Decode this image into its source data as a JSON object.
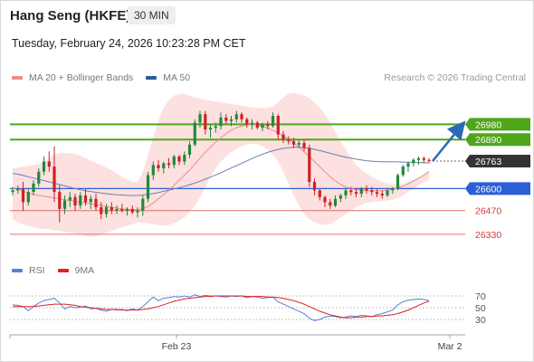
{
  "header": {
    "instrument": "Hang Seng (HKFE)",
    "timeframe": "30 MIN",
    "datetime": "Tuesday, February 24, 2026 10:23:28 PM CET",
    "credit": "Research © 2026 Trading Central"
  },
  "legend_main": [
    {
      "label": "MA 20 + Bollinger Bands",
      "color": "#f08c8c"
    },
    {
      "label": "MA 50",
      "color": "#2a5b9c"
    }
  ],
  "legend_rsi": [
    {
      "label": "RSI",
      "color": "#5b7fd6"
    },
    {
      "label": "9MA",
      "color": "#dd2222"
    }
  ],
  "colors": {
    "resistance": "#4fa61b",
    "pivot": "#2a5fd6",
    "support": "#e07070",
    "current": "#333333",
    "candle_up": "#1f8a3a",
    "candle_down": "#cc2222",
    "bollinger_fill": "#fde0e0",
    "arrow": "#2a6ab3"
  },
  "chart_data": [
    {
      "type": "candlestick",
      "ylim": [
        26260,
        27180
      ],
      "x_ticks": [
        "Feb 23",
        "Mar 2"
      ],
      "levels": [
        {
          "value": 26980,
          "label": "26980",
          "role": "resistance"
        },
        {
          "value": 26890,
          "label": "26890",
          "role": "resistance"
        },
        {
          "value": 26763,
          "label": "26763",
          "role": "current"
        },
        {
          "value": 26600,
          "label": "26600",
          "role": "pivot"
        },
        {
          "value": 26470,
          "label": "26470",
          "role": "support"
        },
        {
          "value": 26330,
          "label": "26330",
          "role": "support"
        }
      ],
      "arrow": {
        "from": 26763,
        "to": 26960,
        "direction": "up"
      },
      "ohlc": [
        [
          26580,
          26610,
          26560,
          26590
        ],
        [
          26590,
          26620,
          26570,
          26600
        ],
        [
          26600,
          26640,
          26470,
          26520
        ],
        [
          26520,
          26600,
          26500,
          26580
        ],
        [
          26580,
          26650,
          26560,
          26630
        ],
        [
          26630,
          26720,
          26610,
          26700
        ],
        [
          26700,
          26790,
          26680,
          26760
        ],
        [
          26760,
          26820,
          26700,
          26730
        ],
        [
          26730,
          26850,
          26520,
          26580
        ],
        [
          26580,
          26620,
          26400,
          26480
        ],
        [
          26480,
          26560,
          26450,
          26530
        ],
        [
          26530,
          26580,
          26490,
          26550
        ],
        [
          26550,
          26570,
          26470,
          26500
        ],
        [
          26500,
          26580,
          26480,
          26560
        ],
        [
          26560,
          26600,
          26500,
          26520
        ],
        [
          26520,
          26560,
          26480,
          26540
        ],
        [
          26540,
          26570,
          26470,
          26490
        ],
        [
          26490,
          26520,
          26420,
          26450
        ],
        [
          26450,
          26510,
          26430,
          26490
        ],
        [
          26490,
          26520,
          26450,
          26470
        ],
        [
          26470,
          26500,
          26450,
          26480
        ],
        [
          26480,
          26510,
          26460,
          26470
        ],
        [
          26470,
          26490,
          26440,
          26480
        ],
        [
          26480,
          26500,
          26450,
          26460
        ],
        [
          26460,
          26490,
          26430,
          26470
        ],
        [
          26470,
          26560,
          26440,
          26540
        ],
        [
          26540,
          26700,
          26520,
          26680
        ],
        [
          26680,
          26760,
          26650,
          26740
        ],
        [
          26740,
          26770,
          26700,
          26720
        ],
        [
          26720,
          26760,
          26690,
          26750
        ],
        [
          26750,
          26780,
          26720,
          26740
        ],
        [
          26740,
          26800,
          26720,
          26790
        ],
        [
          26790,
          26800,
          26740,
          26760
        ],
        [
          26760,
          26820,
          26740,
          26800
        ],
        [
          26800,
          26880,
          26780,
          26860
        ],
        [
          26860,
          27010,
          26850,
          26990
        ],
        [
          26990,
          27060,
          26960,
          27040
        ],
        [
          27040,
          27060,
          26920,
          26950
        ],
        [
          26950,
          26980,
          26900,
          26960
        ],
        [
          26960,
          26990,
          26930,
          26970
        ],
        [
          26970,
          27050,
          26950,
          27020
        ],
        [
          27020,
          27040,
          26980,
          27000
        ],
        [
          27000,
          27030,
          26970,
          27010
        ],
        [
          27010,
          27060,
          26990,
          27040
        ],
        [
          27040,
          27050,
          26990,
          27010
        ],
        [
          27010,
          27020,
          26960,
          26980
        ],
        [
          26980,
          27010,
          26950,
          26990
        ],
        [
          26990,
          27000,
          26950,
          26960
        ],
        [
          26960,
          26990,
          26940,
          26980
        ],
        [
          26980,
          27000,
          26950,
          26970
        ],
        [
          26970,
          27050,
          26960,
          27030
        ],
        [
          27030,
          27040,
          26890,
          26920
        ],
        [
          26920,
          26940,
          26870,
          26890
        ],
        [
          26890,
          26910,
          26860,
          26880
        ],
        [
          26880,
          26900,
          26840,
          26860
        ],
        [
          26860,
          26890,
          26840,
          26870
        ],
        [
          26870,
          26890,
          26820,
          26840
        ],
        [
          26840,
          26860,
          26610,
          26640
        ],
        [
          26640,
          26660,
          26560,
          26590
        ],
        [
          26590,
          26600,
          26530,
          26550
        ],
        [
          26550,
          26560,
          26490,
          26520
        ],
        [
          26520,
          26540,
          26480,
          26500
        ],
        [
          26500,
          26560,
          26490,
          26540
        ],
        [
          26540,
          26570,
          26520,
          26560
        ],
        [
          26560,
          26600,
          26540,
          26590
        ],
        [
          26590,
          26610,
          26560,
          26580
        ],
        [
          26580,
          26600,
          26550,
          26570
        ],
        [
          26570,
          26610,
          26550,
          26600
        ],
        [
          26600,
          26620,
          26570,
          26590
        ],
        [
          26590,
          26610,
          26560,
          26580
        ],
        [
          26580,
          26600,
          26550,
          26570
        ],
        [
          26570,
          26590,
          26540,
          26560
        ],
        [
          26560,
          26600,
          26550,
          26590
        ],
        [
          26590,
          26610,
          26570,
          26600
        ],
        [
          26600,
          26690,
          26590,
          26680
        ],
        [
          26680,
          26740,
          26670,
          26730
        ],
        [
          26730,
          26760,
          26700,
          26750
        ],
        [
          26750,
          26780,
          26730,
          26770
        ],
        [
          26770,
          26790,
          26740,
          26780
        ],
        [
          26780,
          26790,
          26750,
          26770
        ],
        [
          26770,
          26780,
          26750,
          26763
        ]
      ],
      "ma20": [
        26600,
        26595,
        26585,
        26575,
        26565,
        26560,
        26555,
        26550,
        26545,
        26540,
        26535,
        26530,
        26525,
        26520,
        26515,
        26510,
        26505,
        26500,
        26495,
        26490,
        26485,
        26480,
        26478,
        26476,
        26475,
        26480,
        26495,
        26515,
        26540,
        26565,
        26590,
        26620,
        26650,
        26680,
        26710,
        26745,
        26780,
        26815,
        26845,
        26875,
        26900,
        26925,
        26945,
        26960,
        26970,
        26975,
        26978,
        26975,
        26968,
        26958,
        26945,
        26930,
        26912,
        26892,
        26870,
        26845,
        26818,
        26790,
        26760,
        26730,
        26700,
        26670,
        26645,
        26625,
        26610,
        26600,
        26594,
        26590,
        26588,
        26587,
        26587,
        26588,
        26590,
        26595,
        26603,
        26614,
        26628,
        26645,
        26662,
        26680,
        26700
      ],
      "ma50": [
        26690,
        26685,
        26678,
        26670,
        26662,
        26655,
        26648,
        26640,
        26632,
        26624,
        26616,
        26608,
        26600,
        26594,
        26588,
        26583,
        26578,
        26574,
        26570,
        26567,
        26564,
        26562,
        26560,
        26559,
        26560,
        26562,
        26566,
        26571,
        26577,
        26584,
        26591,
        26598,
        26606,
        26614,
        26623,
        26633,
        26644,
        26656,
        26668,
        26681,
        26694,
        26708,
        26722,
        26736,
        26750,
        26764,
        26778,
        26791,
        26803,
        26814,
        26824,
        26832,
        26838,
        26842,
        26844,
        26844,
        26842,
        26838,
        26832,
        26825,
        26817,
        26809,
        26801,
        26793,
        26786,
        26780,
        26774,
        26769,
        26765,
        26762,
        26760,
        26759,
        26759,
        26759,
        26758,
        26757,
        26756,
        26755,
        26754,
        26753,
        26752
      ],
      "boll_upper": [
        26720,
        26725,
        26730,
        26735,
        26740,
        26745,
        26760,
        26780,
        26800,
        26810,
        26812,
        26810,
        26805,
        26795,
        26780,
        26765,
        26750,
        26740,
        26725,
        26710,
        26690,
        26670,
        26655,
        26640,
        26640,
        26700,
        26800,
        26900,
        27000,
        27080,
        27120,
        27150,
        27160,
        27160,
        27150,
        27140,
        27130,
        27125,
        27120,
        27115,
        27110,
        27105,
        27100,
        27095,
        27090,
        27085,
        27080,
        27078,
        27076,
        27076,
        27085,
        27110,
        27140,
        27160,
        27165,
        27160,
        27150,
        27135,
        27110,
        27080,
        27040,
        26990,
        26935,
        26880,
        26830,
        26780,
        26740,
        26710,
        26690,
        26670,
        26655,
        26640,
        26630,
        26625,
        26625,
        26630,
        26640,
        26650,
        26665,
        26685,
        26705
      ],
      "boll_lower": [
        26420,
        26400,
        26390,
        26380,
        26370,
        26365,
        26360,
        26360,
        26355,
        26350,
        26345,
        26340,
        26335,
        26330,
        26320,
        26315,
        26320,
        26330,
        26340,
        26350,
        26360,
        26370,
        26380,
        26390,
        26400,
        26400,
        26395,
        26390,
        26385,
        26380,
        26385,
        26395,
        26410,
        26430,
        26460,
        26500,
        26550,
        26610,
        26670,
        26720,
        26760,
        26790,
        26815,
        26835,
        26850,
        26860,
        26865,
        26862,
        26850,
        26830,
        26800,
        26760,
        26700,
        26630,
        26560,
        26500,
        26450,
        26420,
        26400,
        26390,
        26385,
        26390,
        26410,
        26430,
        26450,
        26470,
        26490,
        26505,
        26515,
        26520,
        26525,
        26528,
        26530,
        26535,
        26545,
        26560,
        26580,
        26600,
        26620,
        26640,
        26650
      ]
    },
    {
      "type": "line",
      "ylim": [
        10,
        90
      ],
      "y_ticks": [
        70,
        50,
        30
      ],
      "rsi": [
        55,
        54,
        52,
        45,
        52,
        58,
        62,
        64,
        66,
        58,
        48,
        52,
        50,
        51,
        53,
        48,
        49,
        46,
        44,
        47,
        46,
        47,
        45,
        48,
        46,
        52,
        60,
        68,
        62,
        66,
        67,
        69,
        68,
        70,
        68,
        72,
        69,
        71,
        70,
        70,
        69,
        68,
        70,
        69,
        70,
        67,
        69,
        68,
        66,
        67,
        68,
        60,
        56,
        52,
        48,
        44,
        40,
        32,
        28,
        30,
        34,
        36,
        35,
        33,
        34,
        36,
        35,
        37,
        36,
        35,
        38,
        40,
        43,
        46,
        55,
        60,
        63,
        64,
        65,
        64,
        62
      ],
      "ma9": [
        52,
        52,
        52,
        52,
        52,
        53,
        54,
        55,
        56,
        56,
        56,
        55,
        54,
        52,
        51,
        50,
        49,
        48,
        47,
        47,
        47,
        46,
        46,
        46,
        46,
        47,
        48,
        50,
        52,
        55,
        58,
        61,
        63,
        65,
        66,
        67,
        68,
        69,
        69,
        70,
        70,
        70,
        70,
        70,
        70,
        69,
        69,
        69,
        69,
        68,
        68,
        67,
        66,
        64,
        62,
        59,
        56,
        52,
        48,
        44,
        41,
        38,
        36,
        34,
        33,
        33,
        34,
        34,
        35,
        35,
        36,
        36,
        37,
        38,
        40,
        43,
        46,
        50,
        54,
        58,
        61
      ]
    }
  ]
}
